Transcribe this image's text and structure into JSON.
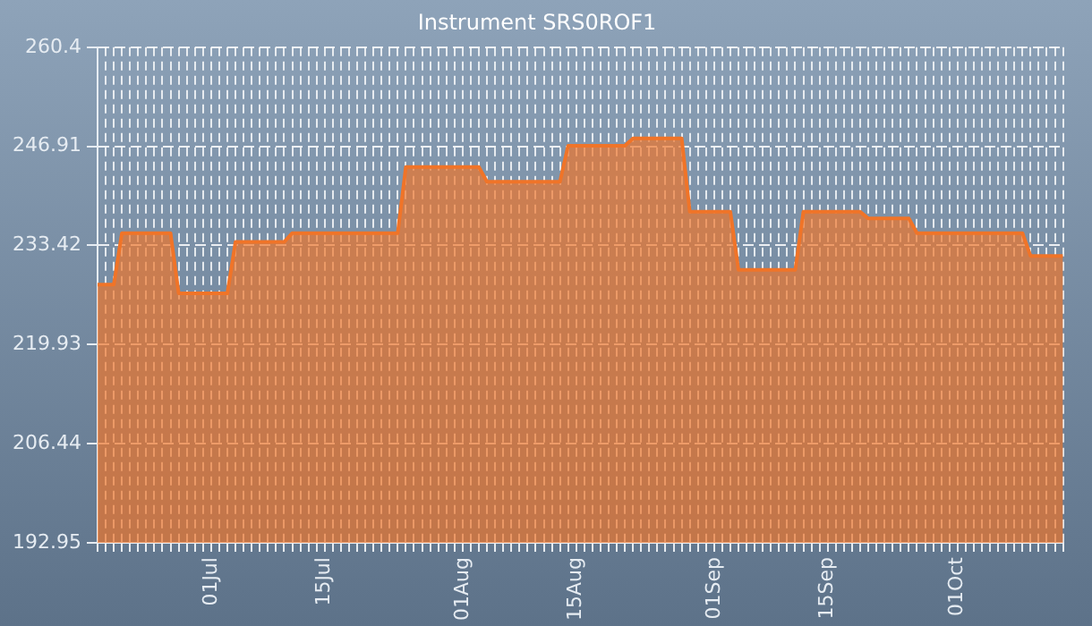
{
  "chart_data": {
    "type": "area",
    "title": "Instrument SRS0ROF1",
    "x": [
      "--06-17",
      "--06-19",
      "--06-20",
      "--06-26",
      "--06-27",
      "--07-03",
      "--07-04",
      "--07-10",
      "--07-11",
      "--07-24",
      "--07-25",
      "--08-03",
      "--08-04",
      "--08-13",
      "--08-14",
      "--08-21",
      "--08-22",
      "--08-28",
      "--08-29",
      "--09-03",
      "--09-04",
      "--09-11",
      "--09-12",
      "--09-19",
      "--09-20",
      "--09-25",
      "--09-26",
      "--10-09",
      "--10-10",
      "--10-14"
    ],
    "series": [
      {
        "color": "#f07428",
        "values": [
          228.1,
          228.1,
          235.1,
          235.1,
          226.9,
          226.9,
          233.9,
          233.9,
          235.1,
          235.1,
          244.1,
          244.1,
          242.1,
          242.1,
          247.0,
          247.0,
          248.0,
          248.0,
          238.0,
          238.0,
          230.1,
          230.1,
          238.0,
          238.0,
          237.1,
          237.1,
          235.1,
          235.1,
          232.0,
          232.0
        ]
      }
    ],
    "xlim": [
      "--06-17",
      "--10-14"
    ],
    "xticks": [
      {
        "value": "--06-17",
        "label": null
      },
      {
        "value": "--06-18",
        "label": null
      },
      {
        "value": "--06-19",
        "label": null
      },
      {
        "value": "--06-20",
        "label": null
      },
      {
        "value": "--06-21",
        "label": null
      },
      {
        "value": "--06-22",
        "label": null
      },
      {
        "value": "--06-23",
        "label": null
      },
      {
        "value": "--06-24",
        "label": null
      },
      {
        "value": "--06-25",
        "label": null
      },
      {
        "value": "--06-26",
        "label": null
      },
      {
        "value": "--06-27",
        "label": null
      },
      {
        "value": "--06-28",
        "label": null
      },
      {
        "value": "--06-29",
        "label": null
      },
      {
        "value": "--06-30",
        "label": null
      },
      {
        "value": "--07-01",
        "label": "01Jul"
      },
      {
        "value": "--07-02",
        "label": null
      },
      {
        "value": "--07-03",
        "label": null
      },
      {
        "value": "--07-04",
        "label": null
      },
      {
        "value": "--07-05",
        "label": null
      },
      {
        "value": "--07-06",
        "label": null
      },
      {
        "value": "--07-07",
        "label": null
      },
      {
        "value": "--07-08",
        "label": null
      },
      {
        "value": "--07-09",
        "label": null
      },
      {
        "value": "--07-10",
        "label": null
      },
      {
        "value": "--07-11",
        "label": null
      },
      {
        "value": "--07-12",
        "label": null
      },
      {
        "value": "--07-13",
        "label": null
      },
      {
        "value": "--07-14",
        "label": null
      },
      {
        "value": "--07-15",
        "label": "15Jul"
      },
      {
        "value": "--07-16",
        "label": null
      },
      {
        "value": "--07-17",
        "label": null
      },
      {
        "value": "--07-18",
        "label": null
      },
      {
        "value": "--07-19",
        "label": null
      },
      {
        "value": "--07-20",
        "label": null
      },
      {
        "value": "--07-21",
        "label": null
      },
      {
        "value": "--07-22",
        "label": null
      },
      {
        "value": "--07-23",
        "label": null
      },
      {
        "value": "--07-24",
        "label": null
      },
      {
        "value": "--07-25",
        "label": null
      },
      {
        "value": "--07-26",
        "label": null
      },
      {
        "value": "--07-27",
        "label": null
      },
      {
        "value": "--07-28",
        "label": null
      },
      {
        "value": "--07-29",
        "label": null
      },
      {
        "value": "--07-30",
        "label": null
      },
      {
        "value": "--07-31",
        "label": null
      },
      {
        "value": "--08-01",
        "label": "01Aug"
      },
      {
        "value": "--08-02",
        "label": null
      },
      {
        "value": "--08-03",
        "label": null
      },
      {
        "value": "--08-04",
        "label": null
      },
      {
        "value": "--08-05",
        "label": null
      },
      {
        "value": "--08-06",
        "label": null
      },
      {
        "value": "--08-07",
        "label": null
      },
      {
        "value": "--08-08",
        "label": null
      },
      {
        "value": "--08-09",
        "label": null
      },
      {
        "value": "--08-10",
        "label": null
      },
      {
        "value": "--08-11",
        "label": null
      },
      {
        "value": "--08-12",
        "label": null
      },
      {
        "value": "--08-13",
        "label": null
      },
      {
        "value": "--08-14",
        "label": null
      },
      {
        "value": "--08-15",
        "label": "15Aug"
      },
      {
        "value": "--08-16",
        "label": null
      },
      {
        "value": "--08-17",
        "label": null
      },
      {
        "value": "--08-18",
        "label": null
      },
      {
        "value": "--08-19",
        "label": null
      },
      {
        "value": "--08-20",
        "label": null
      },
      {
        "value": "--08-21",
        "label": null
      },
      {
        "value": "--08-22",
        "label": null
      },
      {
        "value": "--08-23",
        "label": null
      },
      {
        "value": "--08-24",
        "label": null
      },
      {
        "value": "--08-25",
        "label": null
      },
      {
        "value": "--08-26",
        "label": null
      },
      {
        "value": "--08-27",
        "label": null
      },
      {
        "value": "--08-28",
        "label": null
      },
      {
        "value": "--08-29",
        "label": null
      },
      {
        "value": "--08-30",
        "label": null
      },
      {
        "value": "--08-31",
        "label": null
      },
      {
        "value": "--09-01",
        "label": "01Sep"
      },
      {
        "value": "--09-02",
        "label": null
      },
      {
        "value": "--09-03",
        "label": null
      },
      {
        "value": "--09-04",
        "label": null
      },
      {
        "value": "--09-05",
        "label": null
      },
      {
        "value": "--09-06",
        "label": null
      },
      {
        "value": "--09-07",
        "label": null
      },
      {
        "value": "--09-08",
        "label": null
      },
      {
        "value": "--09-09",
        "label": null
      },
      {
        "value": "--09-10",
        "label": null
      },
      {
        "value": "--09-11",
        "label": null
      },
      {
        "value": "--09-12",
        "label": null
      },
      {
        "value": "--09-13",
        "label": null
      },
      {
        "value": "--09-14",
        "label": null
      },
      {
        "value": "--09-15",
        "label": "15Sep"
      },
      {
        "value": "--09-16",
        "label": null
      },
      {
        "value": "--09-17",
        "label": null
      },
      {
        "value": "--09-18",
        "label": null
      },
      {
        "value": "--09-19",
        "label": null
      },
      {
        "value": "--09-20",
        "label": null
      },
      {
        "value": "--09-21",
        "label": null
      },
      {
        "value": "--09-22",
        "label": null
      },
      {
        "value": "--09-23",
        "label": null
      },
      {
        "value": "--09-24",
        "label": null
      },
      {
        "value": "--09-25",
        "label": null
      },
      {
        "value": "--09-26",
        "label": null
      },
      {
        "value": "--09-27",
        "label": null
      },
      {
        "value": "--09-28",
        "label": null
      },
      {
        "value": "--09-29",
        "label": null
      },
      {
        "value": "--09-30",
        "label": null
      },
      {
        "value": "--10-01",
        "label": "01Oct"
      },
      {
        "value": "--10-02",
        "label": null
      },
      {
        "value": "--10-03",
        "label": null
      },
      {
        "value": "--10-04",
        "label": null
      },
      {
        "value": "--10-05",
        "label": null
      },
      {
        "value": "--10-06",
        "label": null
      },
      {
        "value": "--10-07",
        "label": null
      },
      {
        "value": "--10-08",
        "label": null
      },
      {
        "value": "--10-09",
        "label": null
      },
      {
        "value": "--10-10",
        "label": null
      },
      {
        "value": "--10-11",
        "label": null
      },
      {
        "value": "--10-12",
        "label": null
      },
      {
        "value": "--10-13",
        "label": null
      },
      {
        "value": "--10-14",
        "label": null
      }
    ],
    "ylim": [
      192.95,
      260.4
    ],
    "yticks": [
      192.95,
      206.44,
      219.93,
      233.42,
      246.91,
      260.4
    ],
    "grid": true,
    "legend": false,
    "line_style": "solid",
    "marker": "none"
  }
}
